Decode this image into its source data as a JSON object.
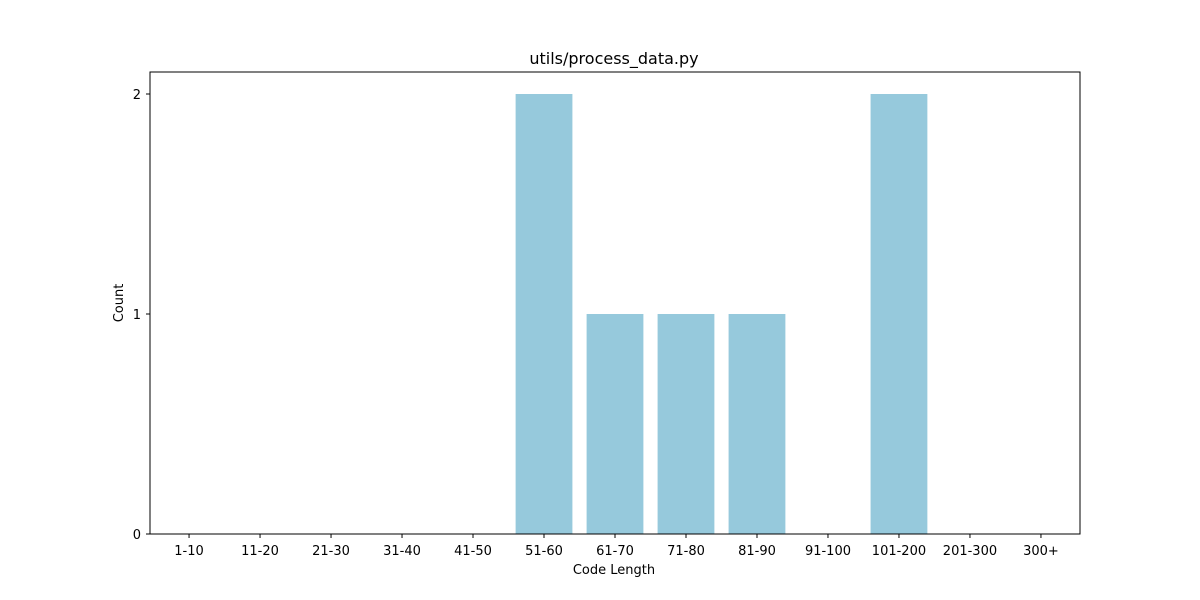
{
  "chart_data": {
    "type": "bar",
    "title": "utils/process_data.py",
    "xlabel": "Code Length",
    "ylabel": "Count",
    "categories": [
      "1-10",
      "11-20",
      "21-30",
      "31-40",
      "41-50",
      "51-60",
      "61-70",
      "71-80",
      "81-90",
      "91-100",
      "101-200",
      "201-300",
      "300+"
    ],
    "values": [
      0,
      0,
      0,
      0,
      0,
      2,
      1,
      1,
      1,
      0,
      2,
      0,
      0
    ],
    "yticks": [
      0,
      1,
      2
    ],
    "ylim": [
      0,
      2.1
    ],
    "grid": false,
    "bar_color": "#96c9dc"
  }
}
